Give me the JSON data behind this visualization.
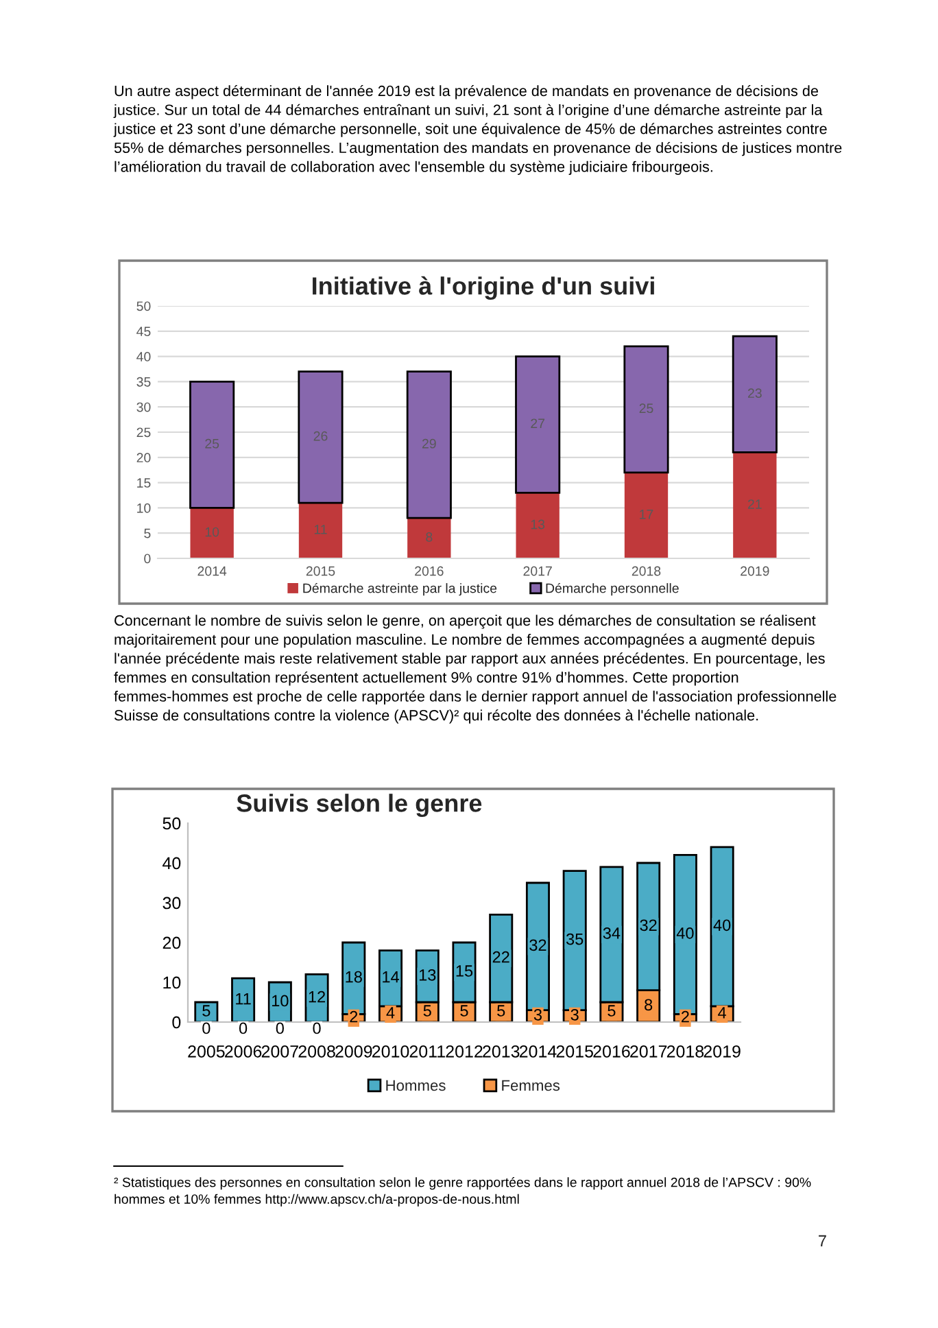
{
  "chart_data": [
    {
      "type": "bar",
      "title": "Initiative à l'origine d'un suivi",
      "stacked": true,
      "data_labels": true,
      "grid": "y",
      "legend": "bottom",
      "categories": [
        "2014",
        "2015",
        "2016",
        "2017",
        "2018",
        "2019"
      ],
      "series": [
        {
          "name": "Démarche astreinte par la justice",
          "color": "#c0393b",
          "values": [
            10,
            11,
            8,
            13,
            17,
            21
          ]
        },
        {
          "name": "Démarche personnelle",
          "color": "#8767ad",
          "values": [
            25,
            26,
            29,
            27,
            25,
            23
          ]
        }
      ],
      "ylim": [
        0,
        50
      ],
      "yticks": [
        0,
        5,
        10,
        15,
        20,
        25,
        30,
        35,
        40,
        45,
        50
      ],
      "annotations": [
        "Un autre aspect déterminant de l'année 2019 est la prévalence de mandats en provenance de décisions de justice. Sur un total de 44 démarches entraînant un suivi, 21 sont à l’origine d’une démarche astreinte par la justice et 23 sont d’une démarche personnelle, soit une équivalence de 45% de démarches astreintes contre 55% de démarches personnelles. L’augmentation des mandats en provenance de décisions de justices montre l’amélioration du travail de collaboration avec l'ensemble du système judiciaire fribourgeois."
      ]
    },
    {
      "type": "bar",
      "title": "Suivis selon le genre",
      "stacked": true,
      "data_labels": true,
      "grid": false,
      "legend": "bottom",
      "categories": [
        "2005",
        "2006",
        "2007",
        "2008",
        "2009",
        "2010",
        "2011",
        "2012",
        "2013",
        "2014",
        "2015",
        "2016",
        "2017",
        "2018",
        "2019"
      ],
      "series": [
        {
          "name": "Femmes",
          "color": "#f79646",
          "values": [
            0,
            0,
            0,
            0,
            2,
            4,
            5,
            5,
            5,
            3,
            3,
            5,
            8,
            2,
            4
          ]
        },
        {
          "name": "Hommes",
          "color": "#4bacc6",
          "values": [
            5,
            11,
            10,
            12,
            18,
            14,
            13,
            15,
            22,
            32,
            35,
            34,
            32,
            40,
            40
          ]
        }
      ],
      "ylim": [
        0,
        50
      ],
      "yticks": [
        0,
        10,
        20,
        30,
        40,
        50
      ],
      "annotations": [
        "Concernant le nombre de suivis selon le genre, on aperçoit que les démarches de consultation se réalisent majoritairement pour une population masculine. Le nombre de femmes accompagnées a augmenté depuis l'année précédente mais reste relativement stable par rapport aux années précédentes. En pourcentage, les femmes en consultation représentent actuellement 9% contre 91% d’hommes. Cette proportion femmes-hommes est proche de celle rapportée dans le dernier rapport annuel de l'association professionnelle Suisse de consultations contre la violence (APSCV)² qui récolte des données à l'échelle nationale.",
        "² Statistiques des personnes en consultation selon le genre rapportées dans le rapport annuel 2018 de l’APSCV : 90% hommes et 10% femmes http://www.apscv.ch/a-propos-de-nous.html",
        "7"
      ]
    }
  ]
}
